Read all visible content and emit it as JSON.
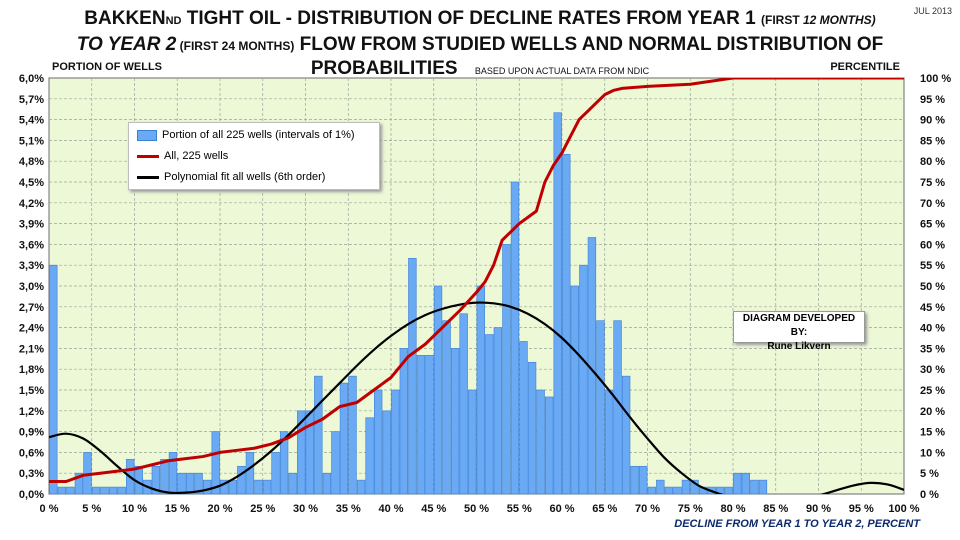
{
  "header": {
    "title_part1": "BAKKEN",
    "title_sub": "ND",
    "title_part2": " TIGHT OIL - DISTRIBUTION OF DECLINE RATES FROM YEAR 1 ",
    "title_paren1": "(FIRST ",
    "title_paren1_ital": "12 MONTHS)",
    "title_line2_ital": "TO YEAR 2",
    "title_line2_paren": " (FIRST 24 MONTHS)",
    "title_line2_rest": " FLOW FROM STUDIED WELLS AND NORMAL DISTRIBUTION OF",
    "title_line3": "PROBABILITIES",
    "title_line3_note": "BASED UPON  ACTUAL DATA FROM NDIC",
    "date": "JUL 2013"
  },
  "axis_titles": {
    "left": "PORTION  OF WELLS",
    "right": "PERCENTILE",
    "bottom": "DECLINE FROM YEAR 1 TO YEAR 2, PERCENT"
  },
  "legend": {
    "bars": "Portion of all 225 wells (intervals of 1%)",
    "red": "All, 225 wells",
    "black": "Polynomial fit all wells (6th  order)"
  },
  "credit": {
    "line1": "DIAGRAM DEVELOPED BY:",
    "line2": "Rune Likvern"
  },
  "colors": {
    "plot_bg": "#edf8d7",
    "bar_fill": "#6aa9f4",
    "bar_stroke": "#3b7fd1",
    "red_line": "#c00000",
    "black_line": "#000000",
    "grid": "#9aa59a"
  },
  "chart_data": {
    "type": "bar",
    "xlabel": "DECLINE FROM YEAR 1 TO YEAR 2, PERCENT",
    "ylabel": "PORTION  OF WELLS",
    "y2label": "PERCENTILE",
    "xlim": [
      0,
      100
    ],
    "ylim": [
      0,
      6.0
    ],
    "y2lim": [
      0,
      100
    ],
    "x_ticks": [
      "0 %",
      "5 %",
      "10 %",
      "15 %",
      "20 %",
      "25 %",
      "30 %",
      "35 %",
      "40 %",
      "45 %",
      "50 %",
      "55 %",
      "60 %",
      "65 %",
      "70 %",
      "75 %",
      "80 %",
      "85 %",
      "90 %",
      "95 %",
      "100 %"
    ],
    "y_ticks": [
      "0,0%",
      "0,3%",
      "0,6%",
      "0,9%",
      "1,2%",
      "1,5%",
      "1,8%",
      "2,1%",
      "2,4%",
      "2,7%",
      "3,0%",
      "3,3%",
      "3,6%",
      "3,9%",
      "4,2%",
      "4,5%",
      "4,8%",
      "5,1%",
      "5,4%",
      "5,7%",
      "6,0%"
    ],
    "y2_ticks": [
      "0 %",
      "5 %",
      "10 %",
      "15 %",
      "20 %",
      "25 %",
      "30 %",
      "35 %",
      "40 %",
      "45 %",
      "50 %",
      "55 %",
      "60 %",
      "65 %",
      "70 %",
      "75 %",
      "80 %",
      "85 %",
      "90 %",
      "95 %",
      "100 %"
    ],
    "grid": true,
    "legend_position": "top-left",
    "series": [
      {
        "name": "Portion of all 225 wells (intervals of 1%)",
        "type": "bar",
        "x": [
          0,
          1,
          2,
          3,
          4,
          5,
          6,
          7,
          8,
          9,
          10,
          11,
          12,
          13,
          14,
          15,
          16,
          17,
          18,
          19,
          20,
          21,
          22,
          23,
          24,
          25,
          26,
          27,
          28,
          29,
          30,
          31,
          32,
          33,
          34,
          35,
          36,
          37,
          38,
          39,
          40,
          41,
          42,
          43,
          44,
          45,
          46,
          47,
          48,
          49,
          50,
          51,
          52,
          53,
          54,
          55,
          56,
          57,
          58,
          59,
          60,
          61,
          62,
          63,
          64,
          65,
          66,
          67,
          68,
          69,
          70,
          71,
          72,
          73,
          74,
          75,
          76,
          77,
          78,
          79,
          80,
          81,
          82,
          83
        ],
        "values": [
          3.3,
          0.1,
          0.1,
          0.3,
          0.6,
          0.1,
          0.1,
          0.1,
          0.1,
          0.5,
          0.4,
          0.2,
          0.4,
          0.5,
          0.6,
          0.3,
          0.3,
          0.3,
          0.2,
          0.9,
          0.2,
          0.2,
          0.4,
          0.6,
          0.2,
          0.2,
          0.6,
          0.9,
          0.3,
          1.2,
          1.2,
          1.7,
          0.3,
          0.9,
          1.6,
          1.7,
          0.2,
          1.1,
          1.5,
          1.2,
          1.5,
          2.1,
          3.4,
          2.0,
          2.0,
          3.0,
          2.5,
          2.1,
          2.6,
          1.5,
          3.0,
          2.3,
          2.4,
          3.6,
          4.5,
          2.2,
          1.9,
          1.5,
          1.4,
          5.5,
          4.9,
          3.0,
          3.3,
          3.7,
          2.5,
          1.5,
          2.5,
          1.7,
          0.4,
          0.4,
          0.1,
          0.2,
          0.1,
          0.1,
          0.2,
          0.2,
          0.1,
          0.1,
          0.1,
          0.1,
          0.3,
          0.3,
          0.2,
          0.2
        ]
      },
      {
        "name": "All, 225 wells",
        "type": "line",
        "axis": "right",
        "x": [
          0,
          2,
          4,
          6,
          8,
          10,
          12,
          14,
          16,
          18,
          20,
          22,
          24,
          26,
          28,
          30,
          32,
          34,
          36,
          38,
          40,
          42,
          44,
          46,
          48,
          50,
          51,
          52,
          53,
          54,
          55,
          56,
          57,
          58,
          59,
          60,
          61,
          62,
          63,
          64,
          65,
          66,
          67,
          70,
          75,
          80,
          85,
          90,
          95,
          100
        ],
        "values": [
          3,
          3,
          4.5,
          5,
          5.5,
          6,
          7,
          8,
          8.5,
          9,
          10,
          10.5,
          11,
          12,
          13.5,
          16,
          18,
          21,
          22,
          25,
          28,
          33,
          36,
          40,
          44,
          48.5,
          51,
          55,
          61,
          63,
          65,
          66.5,
          68,
          75,
          79,
          82,
          86,
          90,
          92,
          94,
          96,
          97,
          97.5,
          98,
          98.5,
          100,
          100,
          100,
          100,
          100
        ]
      },
      {
        "name": "Polynomial fit all wells (6th  order)",
        "type": "line",
        "axis": "left",
        "x": [
          0,
          2,
          4,
          6,
          8,
          10,
          12,
          14,
          16,
          18,
          20,
          22,
          24,
          26,
          28,
          30,
          32,
          34,
          36,
          38,
          40,
          42,
          44,
          46,
          48,
          50,
          52,
          54,
          56,
          58,
          60,
          62,
          64,
          66,
          68,
          70,
          72,
          74,
          76,
          78,
          80,
          82,
          84,
          86,
          88,
          90,
          92,
          94,
          96,
          98,
          100
        ],
        "values": [
          0.82,
          0.87,
          0.8,
          0.62,
          0.4,
          0.2,
          0.08,
          0.02,
          0.02,
          0.05,
          0.12,
          0.25,
          0.42,
          0.62,
          0.85,
          1.1,
          1.35,
          1.6,
          1.85,
          2.08,
          2.28,
          2.45,
          2.58,
          2.67,
          2.73,
          2.76,
          2.75,
          2.7,
          2.6,
          2.45,
          2.25,
          2.0,
          1.72,
          1.42,
          1.1,
          0.8,
          0.52,
          0.3,
          0.12,
          0.02,
          -0.05,
          -0.08,
          -0.09,
          -0.08,
          -0.05,
          -0.02,
          0.05,
          0.12,
          0.16,
          0.14,
          0.06
        ]
      }
    ]
  }
}
